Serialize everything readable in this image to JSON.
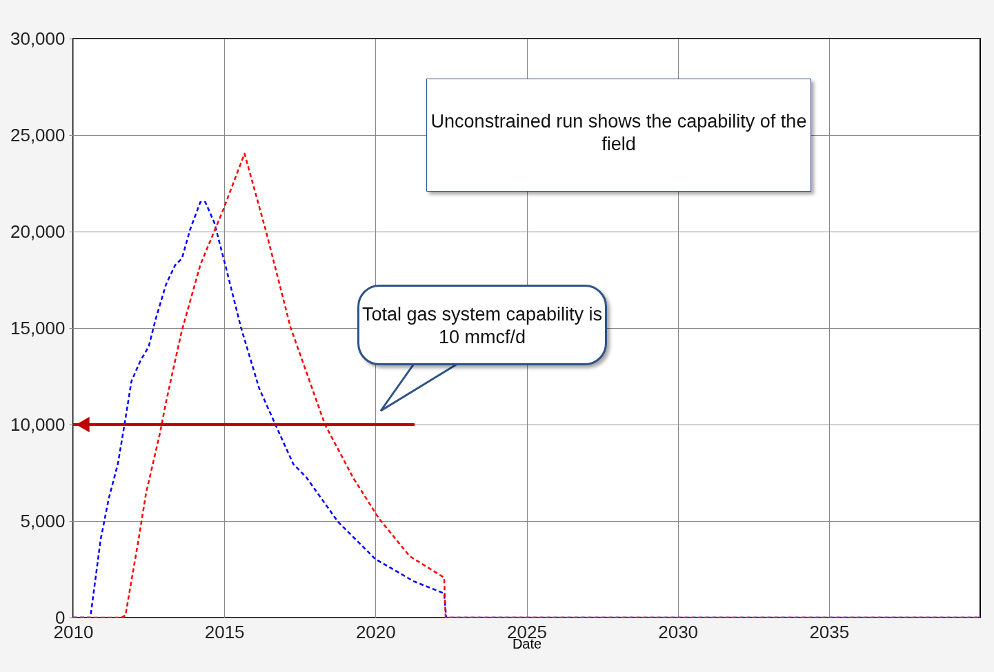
{
  "chart_data": {
    "type": "line",
    "xlabel": "Date",
    "xlim": [
      2010,
      2040
    ],
    "xticks": [
      2010,
      2015,
      2020,
      2025,
      2030,
      2035
    ],
    "ylim": [
      0,
      30000
    ],
    "yticks": [
      {
        "value": 0,
        "label": "0"
      },
      {
        "value": 5000,
        "label": "5,000"
      },
      {
        "value": 10000,
        "label": "10,000"
      },
      {
        "value": 15000,
        "label": "15,000"
      },
      {
        "value": 20000,
        "label": "20,000"
      },
      {
        "value": 25000,
        "label": "25,000"
      },
      {
        "value": 30000,
        "label": "30,000"
      }
    ],
    "grid": true,
    "line_style": "dashed",
    "series": [
      {
        "color": "#0000ff",
        "x": [
          2010,
          2010.57,
          2010.91,
          2011.18,
          2011.48,
          2011.71,
          2011.93,
          2012.23,
          2012.5,
          2012.73,
          2013.07,
          2013.37,
          2013.6,
          2013.87,
          2014.21,
          2014.37,
          2014.67,
          2015.03,
          2015.55,
          2016.15,
          2016.69,
          2017.28,
          2017.72,
          2018.76,
          2019.99,
          2021.25,
          2022.27,
          2022.34,
          2040
        ],
        "values": [
          0,
          0,
          4040,
          6180,
          7960,
          10110,
          12250,
          13320,
          14040,
          15460,
          17250,
          18250,
          18610,
          20110,
          21540,
          21540,
          20460,
          18290,
          15040,
          11890,
          10000,
          7960,
          7250,
          4960,
          3040,
          1890,
          1250,
          0,
          0
        ]
      },
      {
        "color": "#ff0000",
        "x": [
          2010,
          2011.59,
          2011.73,
          2012.16,
          2012.41,
          2012.87,
          2013.07,
          2013.39,
          2013.6,
          2014.21,
          2014.94,
          2015.67,
          2016.37,
          2017.19,
          2018.33,
          2019.26,
          2020.11,
          2021.13,
          2022.27,
          2022.32,
          2040
        ],
        "values": [
          0,
          0,
          110,
          4000,
          6430,
          9540,
          11140,
          13430,
          14890,
          18290,
          21040,
          24040,
          20070,
          15040,
          10000,
          7250,
          5140,
          3180,
          2070,
          0,
          0
        ]
      }
    ],
    "ref_lines": [
      {
        "axis": "y",
        "value": 10000,
        "color": "#c00000"
      }
    ],
    "annotations": [
      "Unconstrained run shows the capability of the field",
      "Total gas system capability is 10 mmcf/d"
    ]
  }
}
